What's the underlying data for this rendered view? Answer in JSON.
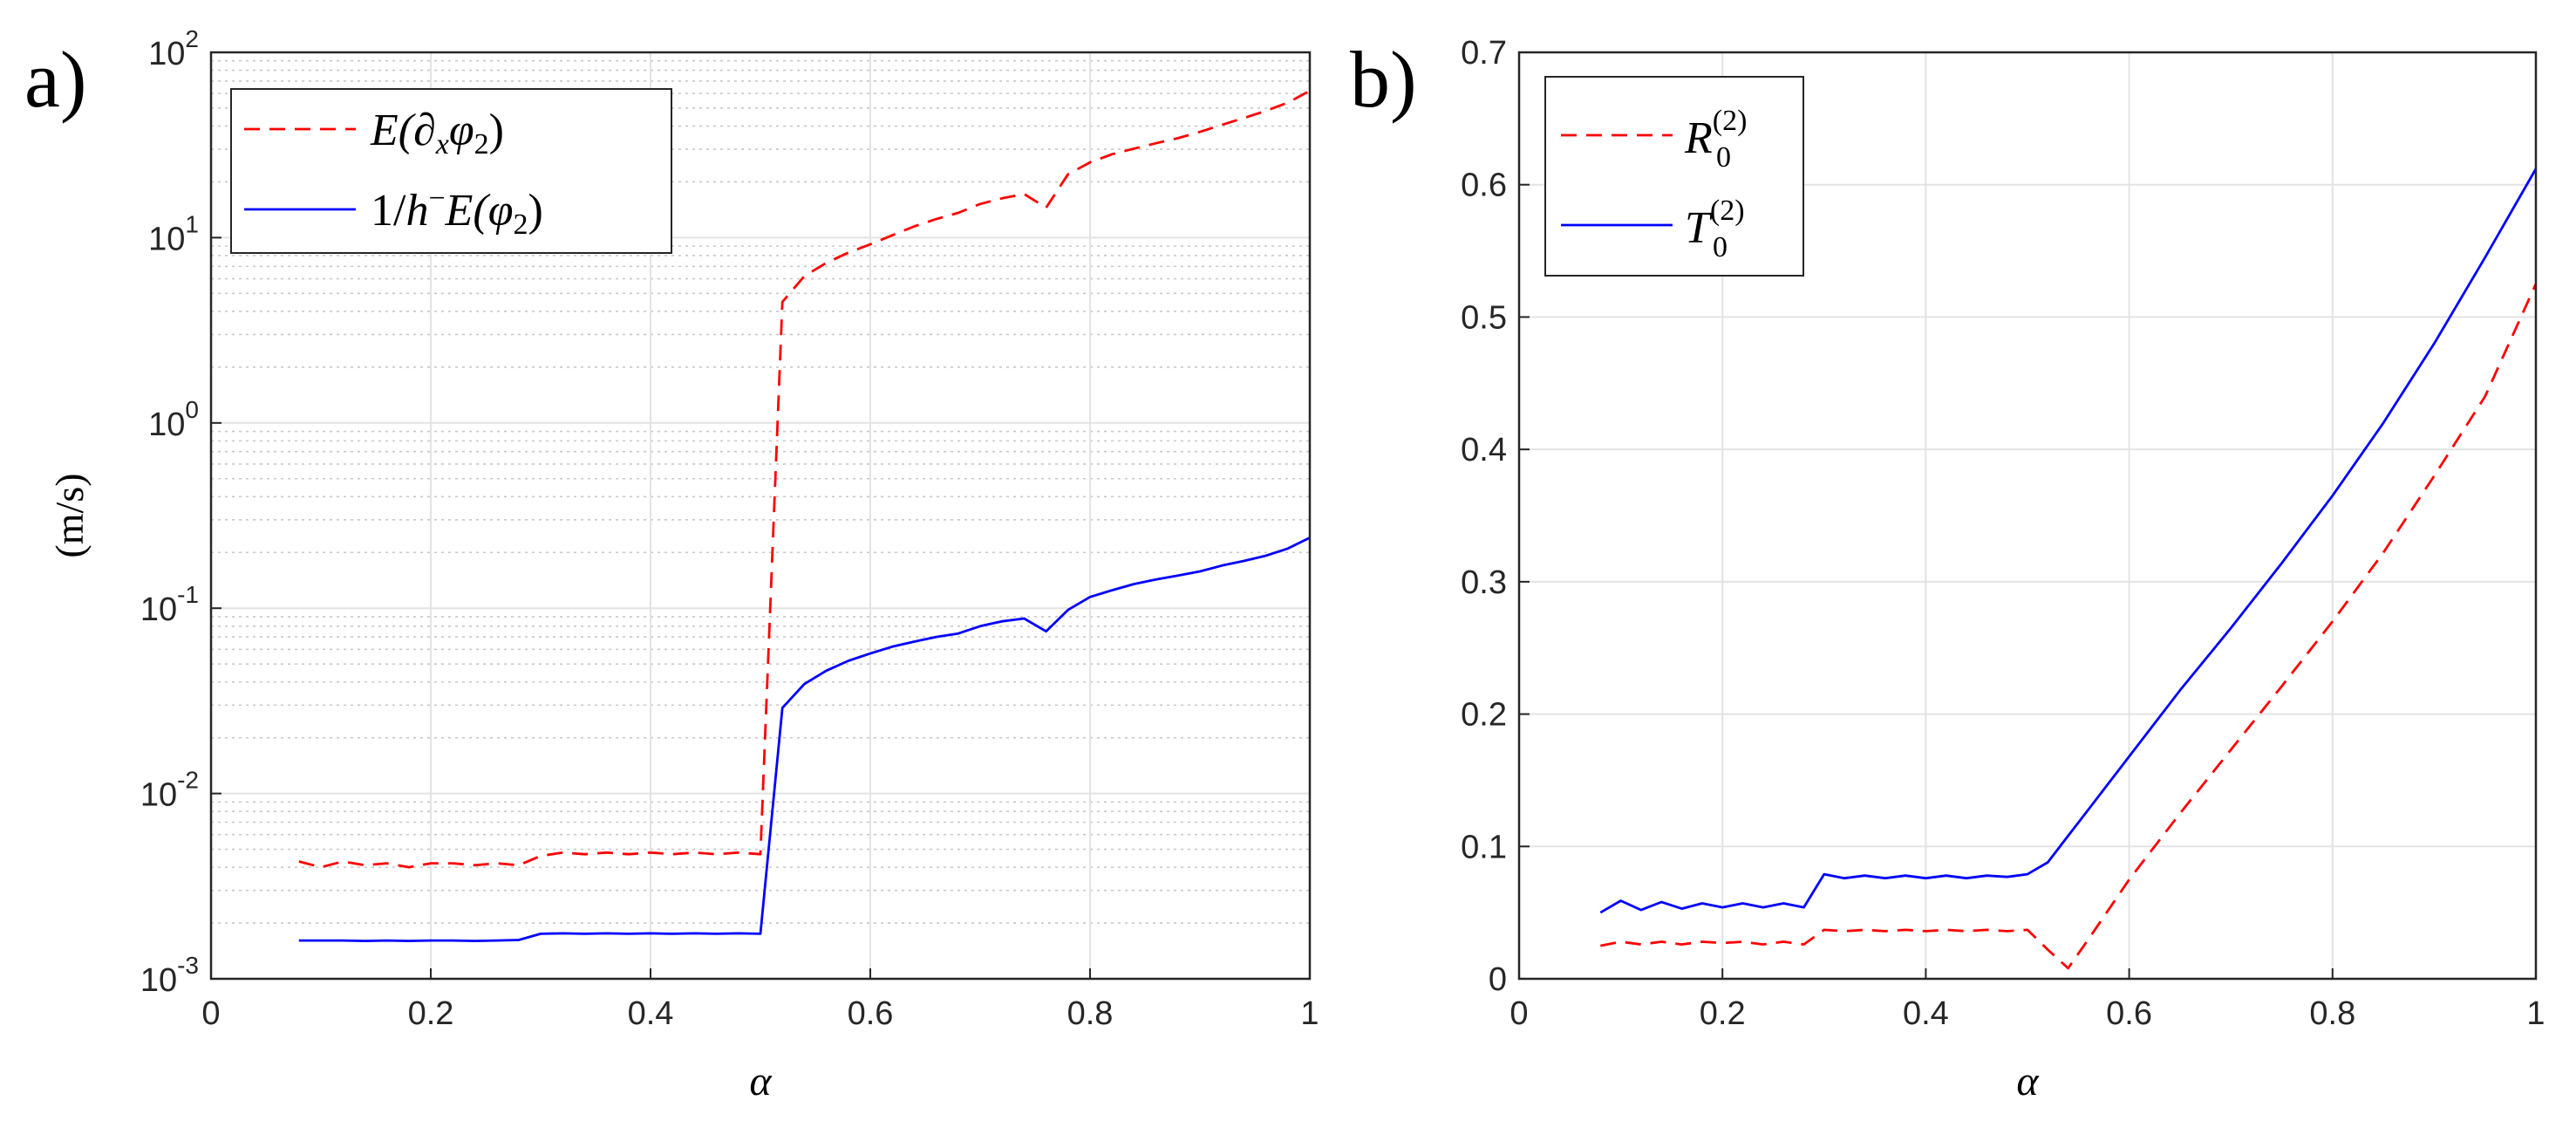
{
  "chart_data": [
    {
      "type": "line",
      "panel_label": "a)",
      "xlabel": "α",
      "ylabel": "(m/s)",
      "xscale": "linear",
      "yscale": "log",
      "xlim": [
        0,
        1
      ],
      "ylim": [
        0.001,
        100
      ],
      "xticks": [
        0,
        0.2,
        0.4,
        0.6,
        0.8,
        1
      ],
      "xtick_labels": [
        "0",
        "0.2",
        "0.4",
        "0.6",
        "0.8",
        "1"
      ],
      "ytick_labels": [
        {
          "base": "10",
          "exp": "-3"
        },
        {
          "base": "10",
          "exp": "-2"
        },
        {
          "base": "10",
          "exp": "-1"
        },
        {
          "base": "10",
          "exp": "0"
        },
        {
          "base": "10",
          "exp": "1"
        },
        {
          "base": "10",
          "exp": "2"
        }
      ],
      "grid": true,
      "minor_grid": true,
      "legend_position": "top-left",
      "series": [
        {
          "name": "E(∂xφ2)",
          "legend_parts": {
            "a": "E(∂",
            "sub1": "x",
            "b": "φ",
            "sub2": "2",
            "c": ")"
          },
          "color": "#ff0000",
          "style": "dashed",
          "x": [
            0.08,
            0.1,
            0.12,
            0.14,
            0.16,
            0.18,
            0.2,
            0.22,
            0.24,
            0.26,
            0.28,
            0.3,
            0.32,
            0.34,
            0.36,
            0.38,
            0.4,
            0.42,
            0.44,
            0.46,
            0.48,
            0.5,
            0.52,
            0.54,
            0.56,
            0.58,
            0.6,
            0.62,
            0.64,
            0.66,
            0.68,
            0.7,
            0.72,
            0.74,
            0.76,
            0.78,
            0.8,
            0.82,
            0.84,
            0.86,
            0.88,
            0.9,
            0.92,
            0.94,
            0.96,
            0.98,
            1.0
          ],
          "y": [
            0.0043,
            0.004,
            0.0043,
            0.0041,
            0.0042,
            0.004,
            0.0042,
            0.0042,
            0.0041,
            0.0042,
            0.0041,
            0.0046,
            0.0048,
            0.0047,
            0.0048,
            0.0047,
            0.0048,
            0.0047,
            0.0048,
            0.0047,
            0.0048,
            0.0047,
            4.5,
            6.2,
            7.3,
            8.3,
            9.2,
            10.3,
            11.5,
            12.6,
            13.6,
            15.2,
            16.3,
            17.2,
            14.5,
            22.0,
            25.5,
            28.2,
            30.2,
            32.3,
            34.4,
            37.2,
            40.6,
            44.2,
            48.3,
            53.5,
            62.0
          ]
        },
        {
          "name": "1/h⁻E(φ2)",
          "legend_parts": {
            "a": "1/",
            "b": "h",
            "sup": "−",
            "c": "E(φ",
            "sub": "2",
            "d": ")"
          },
          "color": "#0000ff",
          "style": "solid",
          "x": [
            0.08,
            0.1,
            0.12,
            0.14,
            0.16,
            0.18,
            0.2,
            0.22,
            0.24,
            0.26,
            0.28,
            0.3,
            0.32,
            0.34,
            0.36,
            0.38,
            0.4,
            0.42,
            0.44,
            0.46,
            0.48,
            0.5,
            0.52,
            0.54,
            0.56,
            0.58,
            0.6,
            0.62,
            0.64,
            0.66,
            0.68,
            0.7,
            0.72,
            0.74,
            0.76,
            0.78,
            0.8,
            0.82,
            0.84,
            0.86,
            0.88,
            0.9,
            0.92,
            0.94,
            0.96,
            0.98,
            1.0
          ],
          "y": [
            0.00161,
            0.00161,
            0.00161,
            0.0016,
            0.00161,
            0.0016,
            0.00161,
            0.00161,
            0.0016,
            0.00161,
            0.00162,
            0.00175,
            0.00176,
            0.00175,
            0.00176,
            0.00175,
            0.00176,
            0.00175,
            0.00176,
            0.00175,
            0.00176,
            0.00175,
            0.029,
            0.039,
            0.046,
            0.052,
            0.057,
            0.062,
            0.066,
            0.07,
            0.073,
            0.08,
            0.085,
            0.088,
            0.075,
            0.098,
            0.115,
            0.125,
            0.135,
            0.143,
            0.15,
            0.158,
            0.17,
            0.18,
            0.192,
            0.21,
            0.24
          ]
        }
      ]
    },
    {
      "type": "line",
      "panel_label": "b)",
      "xlabel": "α",
      "ylabel": "",
      "xscale": "linear",
      "yscale": "linear",
      "xlim": [
        0,
        1
      ],
      "ylim": [
        0,
        0.7
      ],
      "xticks": [
        0,
        0.2,
        0.4,
        0.6,
        0.8,
        1
      ],
      "xtick_labels": [
        "0",
        "0.2",
        "0.4",
        "0.6",
        "0.8",
        "1"
      ],
      "yticks": [
        0,
        0.1,
        0.2,
        0.3,
        0.4,
        0.5,
        0.6,
        0.7
      ],
      "ytick_labels": [
        "0",
        "0.1",
        "0.2",
        "0.3",
        "0.4",
        "0.5",
        "0.6",
        "0.7"
      ],
      "grid": true,
      "legend_position": "top-left",
      "series": [
        {
          "name": "R0(2)",
          "legend_parts": {
            "main": "R",
            "sup": "(2)",
            "sub": "0"
          },
          "color": "#ff0000",
          "style": "dashed",
          "x": [
            0.08,
            0.1,
            0.12,
            0.14,
            0.16,
            0.18,
            0.2,
            0.22,
            0.24,
            0.26,
            0.28,
            0.3,
            0.32,
            0.34,
            0.36,
            0.38,
            0.4,
            0.42,
            0.44,
            0.46,
            0.48,
            0.5,
            0.52,
            0.54,
            0.56,
            0.6,
            0.65,
            0.7,
            0.75,
            0.8,
            0.85,
            0.9,
            0.95,
            1.0
          ],
          "y": [
            0.025,
            0.028,
            0.026,
            0.028,
            0.026,
            0.028,
            0.027,
            0.028,
            0.026,
            0.028,
            0.026,
            0.037,
            0.036,
            0.037,
            0.036,
            0.037,
            0.036,
            0.037,
            0.036,
            0.037,
            0.036,
            0.037,
            0.022,
            0.008,
            0.03,
            0.075,
            0.125,
            0.173,
            0.221,
            0.27,
            0.322,
            0.38,
            0.44,
            0.525
          ]
        },
        {
          "name": "T0(2)",
          "legend_parts": {
            "main": "T",
            "sup": "(2)",
            "sub": "0"
          },
          "color": "#0000ff",
          "style": "solid",
          "x": [
            0.08,
            0.1,
            0.12,
            0.14,
            0.16,
            0.18,
            0.2,
            0.22,
            0.24,
            0.26,
            0.28,
            0.3,
            0.32,
            0.34,
            0.36,
            0.38,
            0.4,
            0.42,
            0.44,
            0.46,
            0.48,
            0.5,
            0.52,
            0.54,
            0.56,
            0.6,
            0.65,
            0.7,
            0.75,
            0.8,
            0.85,
            0.9,
            0.95,
            1.0
          ],
          "y": [
            0.05,
            0.059,
            0.052,
            0.058,
            0.053,
            0.057,
            0.054,
            0.057,
            0.054,
            0.057,
            0.054,
            0.079,
            0.076,
            0.078,
            0.076,
            0.078,
            0.076,
            0.078,
            0.076,
            0.078,
            0.077,
            0.079,
            0.088,
            0.108,
            0.128,
            0.168,
            0.218,
            0.265,
            0.314,
            0.365,
            0.42,
            0.48,
            0.545,
            0.612
          ]
        }
      ]
    }
  ]
}
